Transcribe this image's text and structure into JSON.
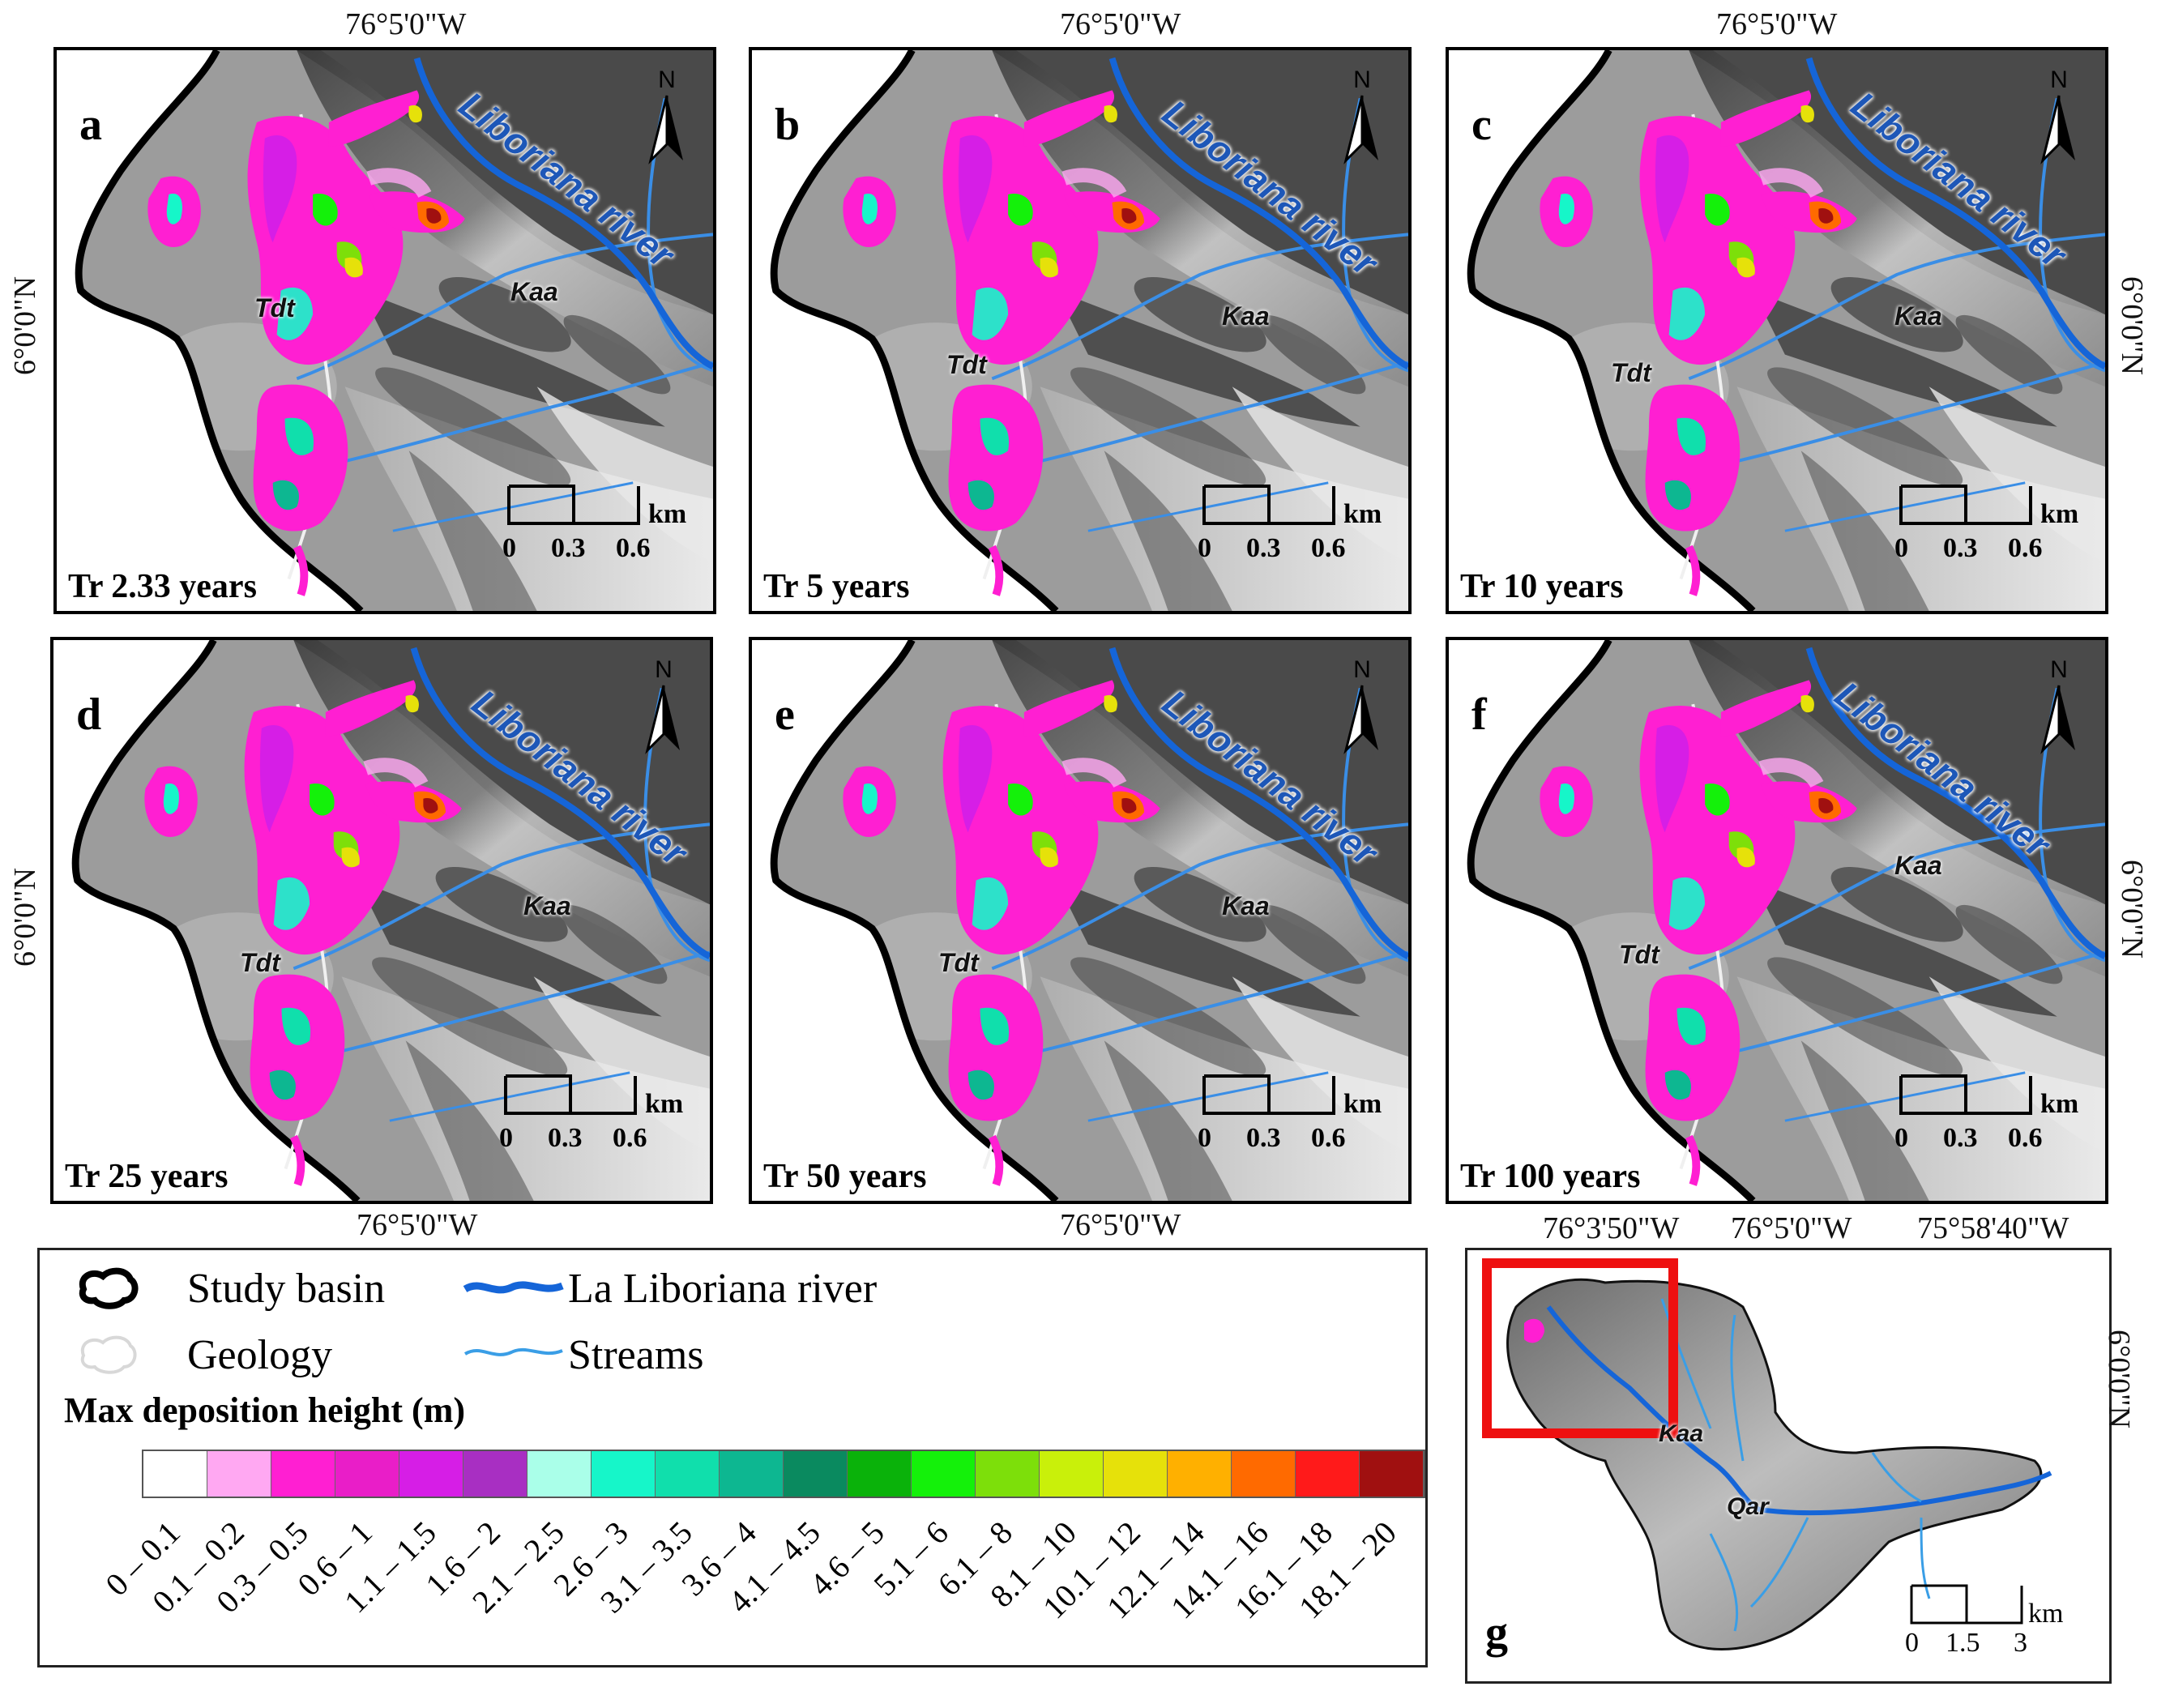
{
  "coords": {
    "top_center": "76°5'0\"W",
    "bottom_center": "76°5'0\"W",
    "side_lat": "6°0'0\"N",
    "inset_top": [
      "76°3'50\"W",
      "76°5'0\"W",
      "75°58'40\"W"
    ]
  },
  "panels": [
    {
      "letter": "a",
      "tr": "Tr 2.33 years"
    },
    {
      "letter": "b",
      "tr": "Tr 5 years"
    },
    {
      "letter": "c",
      "tr": "Tr 10 years"
    },
    {
      "letter": "d",
      "tr": "Tr 25 years"
    },
    {
      "letter": "e",
      "tr": "Tr 50 years"
    },
    {
      "letter": "f",
      "tr": "Tr 100 years"
    }
  ],
  "map_labels": {
    "river": "Liboriana river",
    "geology_1": "Kaa",
    "geology_2": "Tdt",
    "north": "N"
  },
  "scalebar": {
    "ticks": [
      "0",
      "0.3",
      "0.6"
    ],
    "unit": "km"
  },
  "inset": {
    "letter": "g",
    "labels": [
      "Kaa",
      "Qar"
    ],
    "scalebar": {
      "ticks": [
        "0",
        "1.5",
        "3"
      ],
      "unit": "km"
    }
  },
  "legend": {
    "items": [
      "Study basin",
      "Geology",
      "La Liboriana river",
      "Streams"
    ],
    "title": "Max deposition height (m)",
    "classes": [
      "0 – 0.1",
      "0.1 – 0.2",
      "0.3 – 0.5",
      "0.6 – 1",
      "1.1 – 1.5",
      "1.6 – 2",
      "2.1 – 2.5",
      "2.6 – 3",
      "3.1 – 3.5",
      "3.6 – 4",
      "4.1 – 4.5",
      "4.6 – 5",
      "5.1 – 6",
      "6.1 – 8",
      "8.1 – 10",
      "10.1 – 12",
      "12.1 – 14",
      "14.1 – 16",
      "16.1 – 18",
      "18.1 – 20"
    ],
    "colors": [
      "#ffffff",
      "#ffa8f2",
      "#ff1fd2",
      "#e91ec8",
      "#d61ee6",
      "#a82fc2",
      "#aaffe9",
      "#16f6c9",
      "#10dfac",
      "#0db791",
      "#0a8a5f",
      "#0ab20a",
      "#14f10a",
      "#7ddf0a",
      "#c9f00a",
      "#e6e10a",
      "#ffb000",
      "#ff6a00",
      "#ff1a1a",
      "#a01010"
    ]
  }
}
